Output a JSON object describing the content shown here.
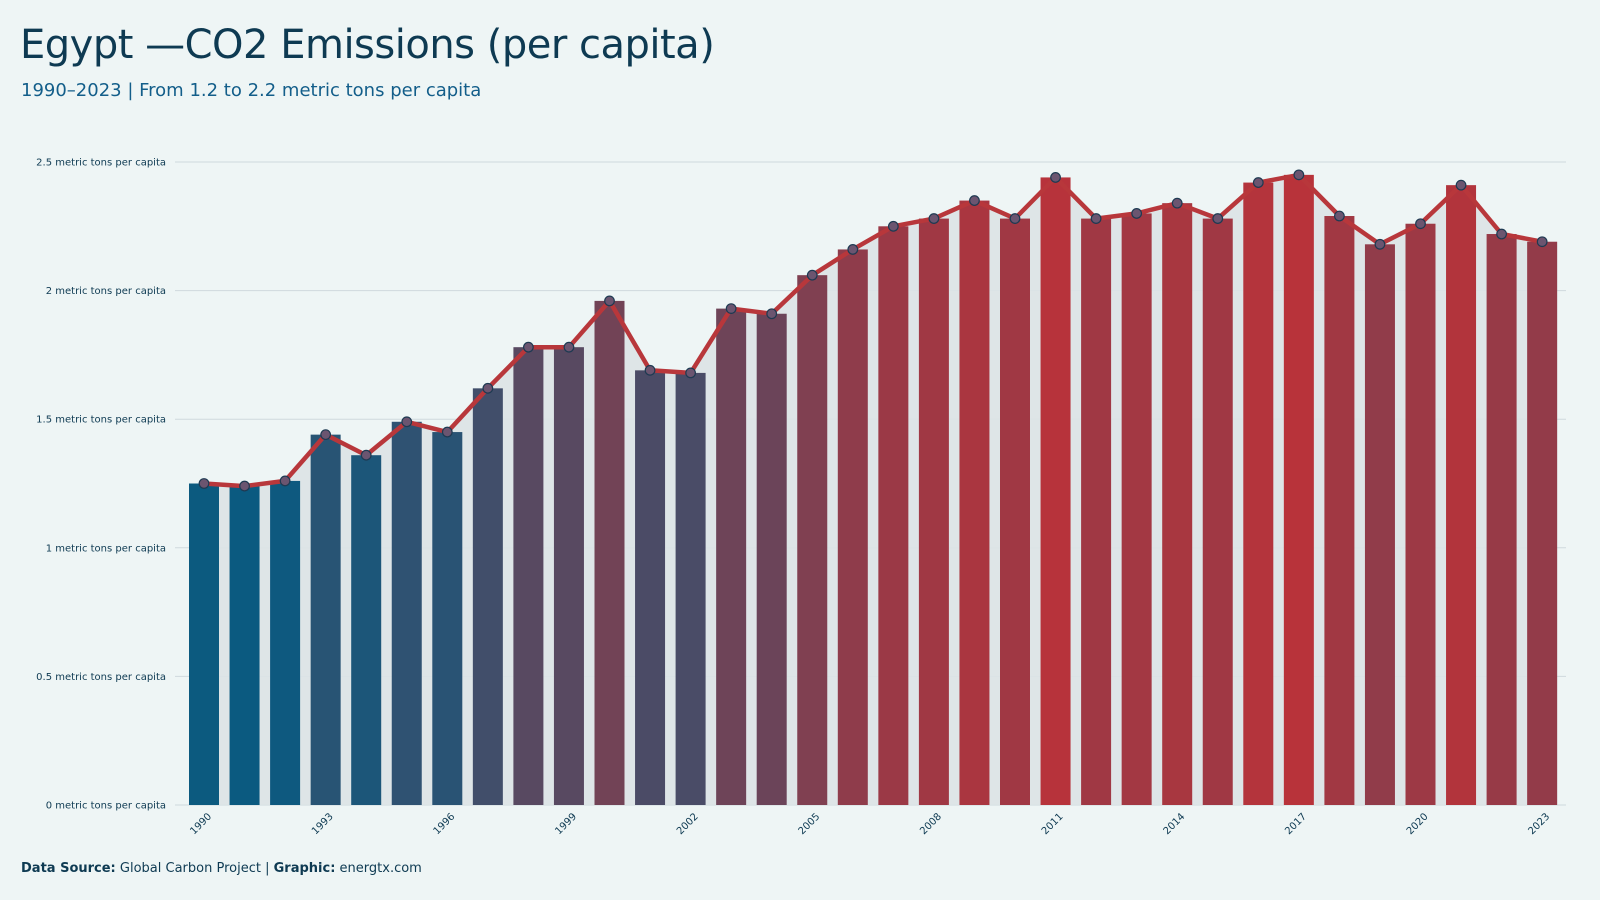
{
  "title": "Egypt —CO2 Emissions (per capita)",
  "subtitle": "1990–2023 | From 1.2 to 2.2 metric tons per capita",
  "footer": {
    "source_label": "Data Source:",
    "source_value": "Global Carbon Project",
    "separator": "|",
    "graphic_label": "Graphic:",
    "graphic_value": "energtx.com"
  },
  "colors": {
    "background": "#eef5f5",
    "low": "#0b5a80",
    "high": "#b8333a",
    "line": "#b8373b",
    "marker_fill": "#6b5570",
    "marker_stroke": "#1e3a52",
    "band": "#dce3e6",
    "text": "#0e3a52"
  },
  "chart_data": {
    "type": "bar",
    "x": [
      1990,
      1991,
      1992,
      1993,
      1994,
      1995,
      1996,
      1997,
      1998,
      1999,
      2000,
      2001,
      2002,
      2003,
      2004,
      2005,
      2006,
      2007,
      2008,
      2009,
      2010,
      2011,
      2012,
      2013,
      2014,
      2015,
      2016,
      2017,
      2018,
      2019,
      2020,
      2021,
      2022,
      2023
    ],
    "values": [
      1.25,
      1.24,
      1.26,
      1.44,
      1.36,
      1.49,
      1.45,
      1.62,
      1.78,
      1.78,
      1.96,
      1.69,
      1.68,
      1.93,
      1.91,
      2.06,
      2.16,
      2.25,
      2.28,
      2.35,
      2.28,
      2.44,
      2.28,
      2.3,
      2.34,
      2.28,
      2.42,
      2.45,
      2.29,
      2.18,
      2.26,
      2.41,
      2.22,
      2.19
    ],
    "overlay": "line-with-markers",
    "xticks": [
      "1990",
      "1993",
      "1996",
      "1999",
      "2002",
      "2005",
      "2008",
      "2011",
      "2014",
      "2017",
      "2020",
      "2023"
    ],
    "yticks": [
      {
        "value": 0,
        "label": "0 metric tons per capita"
      },
      {
        "value": 0.5,
        "label": "0.5 metric tons per capita"
      },
      {
        "value": 1,
        "label": "1 metric tons per capita"
      },
      {
        "value": 1.5,
        "label": "1.5 metric tons per capita"
      },
      {
        "value": 2,
        "label": "2 metric tons per capita"
      },
      {
        "value": 2.5,
        "label": "2.5 metric tons per capita"
      }
    ],
    "ylim": [
      0,
      2.5
    ],
    "grid": true,
    "legend": "none"
  }
}
